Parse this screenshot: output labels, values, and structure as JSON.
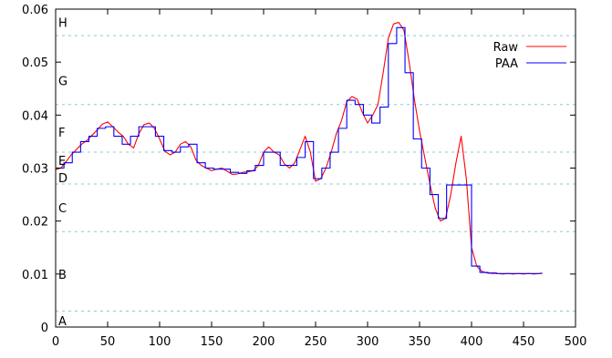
{
  "chart_data": {
    "type": "line",
    "title": "",
    "xlabel": "",
    "ylabel": "",
    "xlim": [
      0,
      500
    ],
    "ylim": [
      0,
      0.06
    ],
    "x_ticks": [
      0,
      50,
      100,
      150,
      200,
      250,
      300,
      350,
      400,
      450,
      500
    ],
    "x_tick_labels": [
      "0",
      "50",
      "100",
      "150",
      "200",
      "250",
      "300",
      "350",
      "400",
      "450",
      "500"
    ],
    "y_ticks": [
      0,
      0.01,
      0.02,
      0.03,
      0.04,
      0.05,
      0.06
    ],
    "y_tick_labels": [
      "0",
      "0.01",
      "0.02",
      "0.03",
      "0.04",
      "0.05",
      "0.06"
    ],
    "grid": false,
    "legend_position": "top-right",
    "symbol_breakpoints": [
      0.003,
      0.018,
      0.027,
      0.033,
      0.042,
      0.055
    ],
    "symbols": [
      {
        "label": "A",
        "y": 0.0012
      },
      {
        "label": "B",
        "y": 0.01
      },
      {
        "label": "C",
        "y": 0.0225
      },
      {
        "label": "D",
        "y": 0.0282
      },
      {
        "label": "E",
        "y": 0.0315
      },
      {
        "label": "F",
        "y": 0.0368
      },
      {
        "label": "G",
        "y": 0.0465
      },
      {
        "label": "H",
        "y": 0.0575
      }
    ],
    "series": [
      {
        "name": "Raw",
        "color": "#ff0000",
        "x": [
          0,
          5,
          10,
          15,
          20,
          25,
          30,
          35,
          40,
          45,
          50,
          55,
          60,
          65,
          70,
          75,
          80,
          85,
          90,
          95,
          100,
          105,
          110,
          115,
          120,
          125,
          130,
          135,
          140,
          145,
          150,
          155,
          160,
          165,
          170,
          175,
          180,
          185,
          190,
          195,
          200,
          205,
          210,
          215,
          220,
          225,
          230,
          235,
          240,
          245,
          250,
          255,
          260,
          265,
          270,
          275,
          280,
          285,
          290,
          295,
          300,
          305,
          310,
          315,
          320,
          325,
          330,
          335,
          340,
          345,
          350,
          355,
          360,
          365,
          370,
          375,
          380,
          385,
          390,
          395,
          400,
          405,
          410,
          415,
          420,
          425,
          430,
          435,
          440,
          445,
          450,
          455,
          460,
          465,
          468
        ],
        "values": [
          0.0297,
          0.03,
          0.0312,
          0.0325,
          0.0335,
          0.0345,
          0.0352,
          0.0362,
          0.0372,
          0.0383,
          0.0387,
          0.0378,
          0.0368,
          0.036,
          0.0345,
          0.0338,
          0.0365,
          0.0382,
          0.0385,
          0.0375,
          0.0355,
          0.0332,
          0.0325,
          0.033,
          0.0345,
          0.035,
          0.034,
          0.0315,
          0.0305,
          0.03,
          0.0295,
          0.0298,
          0.03,
          0.0294,
          0.0288,
          0.0289,
          0.0292,
          0.0293,
          0.0295,
          0.0305,
          0.033,
          0.034,
          0.033,
          0.0325,
          0.0308,
          0.03,
          0.031,
          0.0335,
          0.036,
          0.033,
          0.0275,
          0.028,
          0.03,
          0.033,
          0.0365,
          0.039,
          0.0425,
          0.0435,
          0.043,
          0.0405,
          0.0385,
          0.04,
          0.042,
          0.048,
          0.0545,
          0.0572,
          0.0575,
          0.056,
          0.05,
          0.043,
          0.037,
          0.032,
          0.027,
          0.0225,
          0.02,
          0.0205,
          0.025,
          0.031,
          0.036,
          0.028,
          0.015,
          0.0115,
          0.0105,
          0.0102,
          0.0101,
          0.0101,
          0.01,
          0.0101,
          0.01,
          0.0101,
          0.01,
          0.0101,
          0.01,
          0.0101,
          0.0102
        ]
      },
      {
        "name": "PAA",
        "color": "#0000ff",
        "steps_x": [
          0,
          8,
          16,
          24,
          32,
          40,
          48,
          56,
          64,
          72,
          80,
          88,
          96,
          104,
          112,
          120,
          128,
          136,
          144,
          152,
          160,
          168,
          176,
          184,
          192,
          200,
          208,
          216,
          224,
          232,
          240,
          248,
          256,
          264,
          272,
          280,
          288,
          296,
          304,
          312,
          320,
          328,
          336,
          344,
          352,
          360,
          368,
          376,
          384,
          392,
          400,
          408,
          416,
          424,
          432,
          440,
          448,
          456,
          464,
          468
        ],
        "steps_y": [
          0.03,
          0.031,
          0.033,
          0.035,
          0.036,
          0.0375,
          0.0378,
          0.036,
          0.0345,
          0.036,
          0.0378,
          0.0378,
          0.036,
          0.0333,
          0.033,
          0.034,
          0.0345,
          0.031,
          0.03,
          0.0298,
          0.0298,
          0.0292,
          0.029,
          0.0295,
          0.0305,
          0.033,
          0.033,
          0.0305,
          0.0305,
          0.032,
          0.035,
          0.028,
          0.03,
          0.033,
          0.0375,
          0.0428,
          0.042,
          0.04,
          0.0385,
          0.0415,
          0.0535,
          0.0565,
          0.048,
          0.0355,
          0.03,
          0.025,
          0.0205,
          0.0268,
          0.0268,
          0.0268,
          0.0115,
          0.0103,
          0.0102,
          0.0101,
          0.0101,
          0.0101,
          0.0101,
          0.0101,
          0.0101
        ]
      }
    ]
  }
}
